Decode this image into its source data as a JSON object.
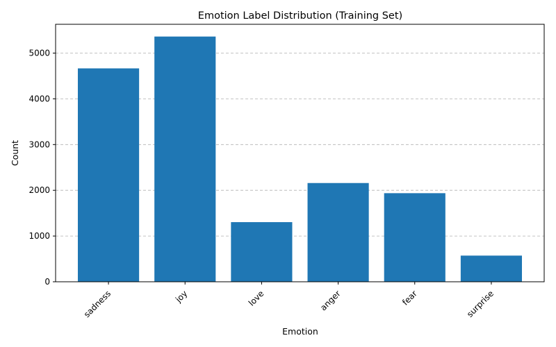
{
  "chart_data": {
    "type": "bar",
    "title": "Emotion Label Distribution (Training Set)",
    "xlabel": "Emotion",
    "ylabel": "Count",
    "categories": [
      "sadness",
      "joy",
      "love",
      "anger",
      "fear",
      "surprise"
    ],
    "values": [
      4666,
      5362,
      1304,
      2159,
      1937,
      572
    ],
    "ylim": [
      0,
      5630
    ],
    "yticks": [
      0,
      1000,
      2000,
      3000,
      4000,
      5000
    ],
    "grid": {
      "y": true,
      "style": "dashed"
    },
    "bar_color": "#1f77b4",
    "x_tick_rotation": 45
  }
}
